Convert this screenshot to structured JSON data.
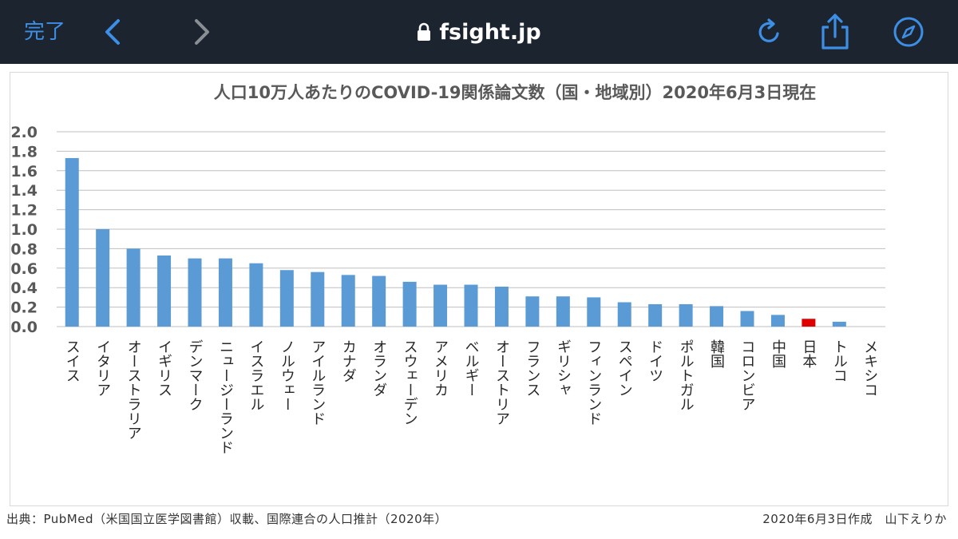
{
  "browser": {
    "done_label": "完了",
    "url": "fsight.jp",
    "accent_color": "#3d8fe6",
    "icons": [
      "back-chevron-icon",
      "forward-chevron-icon",
      "lock-icon",
      "reload-icon",
      "share-icon",
      "compass-icon"
    ]
  },
  "chart_data": {
    "type": "bar",
    "title": "人口10万人あたりのCOVID-19関係論文数（国・地域別）2020年6月3日現在",
    "xlabel": "",
    "ylabel": "",
    "ylim": [
      0,
      2.0
    ],
    "yticks": [
      "0.0",
      "0.2",
      "0.4",
      "0.6",
      "0.8",
      "1.0",
      "1.2",
      "1.4",
      "1.6",
      "1.8",
      "2.0"
    ],
    "grid": true,
    "bar_color": "#5b9bd5",
    "highlight_color": "#e00000",
    "highlight_category": "日本",
    "categories": [
      "スイス",
      "イタリア",
      "オーストラリア",
      "イギリス",
      "デンマーク",
      "ニュージーランド",
      "イスラエル",
      "ノルウェー",
      "アイルランド",
      "カナダ",
      "オランダ",
      "スウェーデン",
      "アメリカ",
      "ベルギー",
      "オーストリア",
      "フランス",
      "ギリシャ",
      "フィンランド",
      "スペイン",
      "ドイツ",
      "ポルトガル",
      "韓国",
      "コロンビア",
      "中国",
      "日本",
      "トルコ",
      "メキシコ"
    ],
    "values": [
      1.73,
      1.0,
      0.8,
      0.73,
      0.7,
      0.7,
      0.65,
      0.58,
      0.56,
      0.53,
      0.52,
      0.46,
      0.43,
      0.43,
      0.41,
      0.31,
      0.31,
      0.3,
      0.25,
      0.23,
      0.23,
      0.21,
      0.16,
      0.12,
      0.08,
      0.05,
      0.0
    ]
  },
  "footer": {
    "source": "出典：PubMed（米国国立医学図書館）収載、国際連合の人口推計（2020年）",
    "author": "2020年6月3日作成　山下えりか"
  }
}
